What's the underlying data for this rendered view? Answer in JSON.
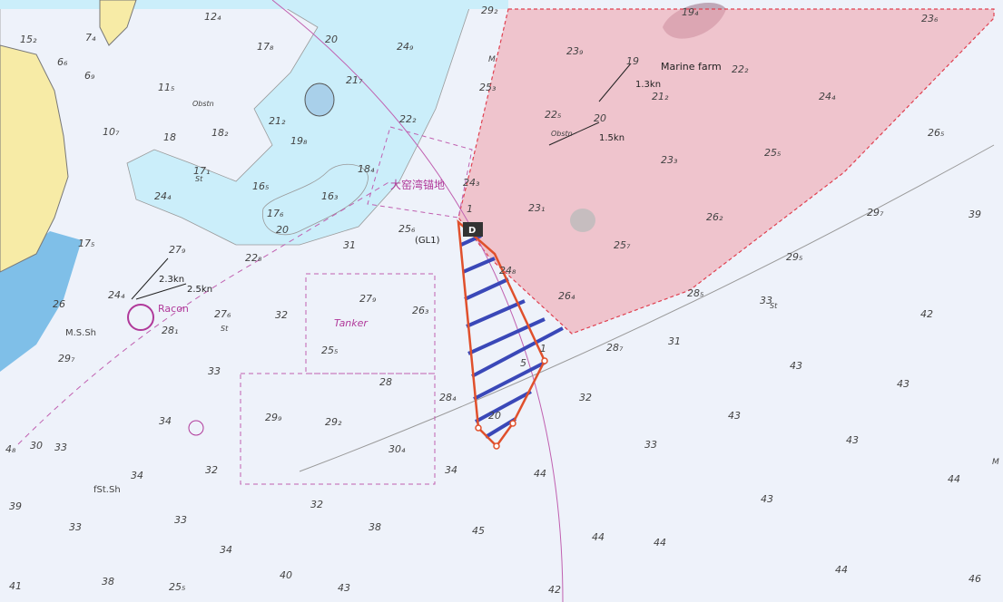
{
  "labels": {
    "marine_farm": "Marine farm",
    "anchorage": "大窑湾锚地",
    "tanker": "Tanker",
    "racon": "Racon",
    "obstn_1": "Obstn",
    "obstn_2": "Obstn",
    "ms_sh": "M.S.Sh",
    "fst_sh": "fSt.Sh",
    "gl1": "(GL1)",
    "beacon": "D",
    "current_1": "1.3kn",
    "current_2": "1.5kn",
    "current_3": "2.3kn",
    "current_4": "2.5kn",
    "st_1": "St",
    "st_2": "St",
    "st_3": "St",
    "m_1": "M",
    "m_2": "M"
  },
  "soundings": [
    "12₄",
    "17₈",
    "24₉",
    "29₂",
    "23₉",
    "22₂",
    "24₄",
    "26₅",
    "25₅",
    "23₃",
    "21₂",
    "22₅",
    "22₂",
    "25₃",
    "24₃",
    "23₁",
    "26₂",
    "25₇",
    "29₇",
    "39",
    "29₅",
    "28₅",
    "33",
    "42",
    "26₄",
    "24₈",
    "28₇",
    "31",
    "43",
    "43",
    "32",
    "43",
    "43",
    "33",
    "44",
    "44",
    "43",
    "44",
    "44",
    "45",
    "44",
    "46",
    "42",
    "28₄",
    "34",
    "30₄",
    "28",
    "29₂",
    "29₉",
    "25₅",
    "27₉",
    "26₃",
    "27₆",
    "32",
    "33",
    "34",
    "32",
    "34",
    "33",
    "30",
    "4₈",
    "39",
    "33",
    "33",
    "34",
    "38",
    "32",
    "40",
    "43",
    "38",
    "41",
    "25₅",
    "28₁",
    "29₇",
    "26",
    "24₄",
    "27₉",
    "22₈",
    "17₅",
    "24₄",
    "17₆",
    "16₃",
    "16₅",
    "18₄",
    "17₁",
    "18₂",
    "18",
    "10₇",
    "11₅",
    "21₂",
    "19₈",
    "21₇",
    "20",
    "20",
    "31",
    "25₆",
    "15₂",
    "7₄",
    "6₆",
    "6₉",
    "23₆",
    "19₄",
    "19",
    "20",
    "1",
    "5",
    "1",
    "20"
  ]
}
